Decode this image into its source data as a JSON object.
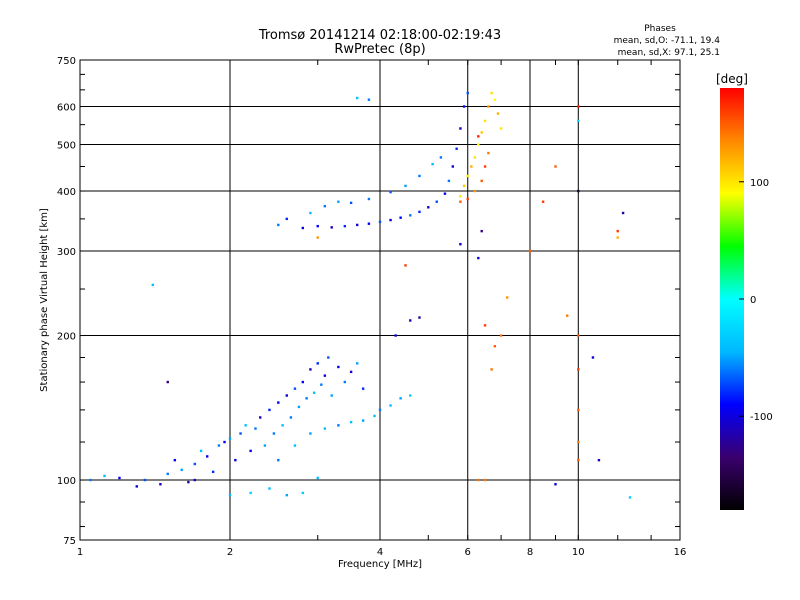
{
  "chart_data": {
    "type": "scatter",
    "title": "Tromsø 20141214 02:18:00-02:19:43",
    "subtitle": "RwPretec (8p)",
    "xlabel": "Frequency [MHz]",
    "ylabel": "Stationary phase Virtual Height [km]",
    "xscale": "log",
    "yscale": "log",
    "xlim": [
      1,
      16
    ],
    "ylim": [
      75,
      750
    ],
    "xticks": [
      1,
      2,
      4,
      6,
      8,
      10,
      16
    ],
    "yticks": [
      75,
      100,
      200,
      300,
      400,
      500,
      600,
      750
    ],
    "grid": true,
    "legend_placement": "top-right",
    "phase_stats": {
      "header": "Phases",
      "o_mode": "mean, sd,O: -71.1, 19.4",
      "x_mode": "mean, sd,X:  97.1, 25.1"
    },
    "colorbar": {
      "label": "[deg]",
      "range": [
        -180,
        180
      ],
      "ticks": [
        100,
        0,
        -100
      ],
      "colors": [
        "#000000",
        "#3a006e",
        "#0000ff",
        "#00b8ff",
        "#00ffff",
        "#00ff00",
        "#ffff00",
        "#ff8800",
        "#ff0000"
      ]
    },
    "series": [
      {
        "mode": "o",
        "points": [
          [
            1.05,
            100,
            -60
          ],
          [
            1.12,
            102,
            -40
          ],
          [
            1.2,
            101,
            -90
          ],
          [
            1.3,
            97,
            -100
          ],
          [
            1.35,
            100,
            -70
          ],
          [
            1.45,
            98,
            -110
          ],
          [
            1.5,
            103,
            -60
          ],
          [
            1.55,
            110,
            -90
          ],
          [
            1.6,
            105,
            -50
          ],
          [
            1.65,
            99,
            -120
          ],
          [
            1.7,
            108,
            -70
          ],
          [
            1.75,
            115,
            -40
          ],
          [
            1.8,
            112,
            -100
          ],
          [
            1.85,
            104,
            -80
          ],
          [
            1.9,
            118,
            -60
          ],
          [
            1.95,
            120,
            -90
          ],
          [
            2.0,
            122,
            -50
          ],
          [
            2.05,
            110,
            -100
          ],
          [
            2.1,
            125,
            -70
          ],
          [
            2.15,
            130,
            -40
          ],
          [
            2.2,
            115,
            -90
          ],
          [
            2.25,
            128,
            -60
          ],
          [
            2.3,
            135,
            -110
          ],
          [
            2.35,
            118,
            -50
          ],
          [
            2.4,
            140,
            -80
          ],
          [
            2.45,
            125,
            -60
          ],
          [
            2.5,
            145,
            -90
          ],
          [
            2.55,
            130,
            -40
          ],
          [
            2.6,
            150,
            -100
          ],
          [
            2.65,
            135,
            -60
          ],
          [
            2.7,
            155,
            -70
          ],
          [
            2.75,
            142,
            -50
          ],
          [
            2.8,
            160,
            -90
          ],
          [
            2.85,
            148,
            -60
          ],
          [
            2.9,
            170,
            -110
          ],
          [
            2.95,
            152,
            -40
          ],
          [
            3.0,
            175,
            -80
          ],
          [
            3.05,
            158,
            -60
          ],
          [
            3.1,
            165,
            -100
          ],
          [
            3.15,
            180,
            -70
          ],
          [
            3.2,
            150,
            -50
          ],
          [
            3.3,
            172,
            -90
          ],
          [
            3.4,
            160,
            -60
          ],
          [
            3.5,
            168,
            -110
          ],
          [
            3.6,
            175,
            -50
          ],
          [
            3.7,
            155,
            -80
          ],
          [
            2.0,
            93,
            -40
          ],
          [
            2.2,
            94,
            -30
          ],
          [
            2.4,
            96,
            -40
          ],
          [
            2.6,
            93,
            -50
          ],
          [
            2.8,
            94,
            -30
          ],
          [
            3.0,
            101,
            -40
          ],
          [
            2.5,
            110,
            -60
          ],
          [
            2.7,
            118,
            -40
          ],
          [
            2.9,
            125,
            -50
          ],
          [
            3.1,
            128,
            -40
          ],
          [
            3.3,
            130,
            -60
          ],
          [
            3.5,
            132,
            -40
          ],
          [
            3.7,
            133,
            -50
          ],
          [
            3.9,
            136,
            -40
          ],
          [
            4.0,
            140,
            -60
          ],
          [
            4.2,
            143,
            -40
          ],
          [
            4.4,
            148,
            -50
          ],
          [
            4.6,
            150,
            -30
          ],
          [
            2.5,
            340,
            -60
          ],
          [
            2.6,
            350,
            -80
          ],
          [
            2.8,
            335,
            -100
          ],
          [
            3.0,
            338,
            -90
          ],
          [
            3.2,
            336,
            -110
          ],
          [
            3.4,
            338,
            -80
          ],
          [
            3.6,
            340,
            -100
          ],
          [
            3.8,
            342,
            -90
          ],
          [
            4.0,
            345,
            -70
          ],
          [
            4.2,
            348,
            -100
          ],
          [
            4.4,
            352,
            -90
          ],
          [
            4.6,
            356,
            -60
          ],
          [
            4.8,
            362,
            -80
          ],
          [
            5.0,
            370,
            -100
          ],
          [
            5.2,
            380,
            -70
          ],
          [
            5.4,
            395,
            -90
          ],
          [
            5.5,
            420,
            -60
          ],
          [
            5.6,
            450,
            -100
          ],
          [
            5.7,
            490,
            -80
          ],
          [
            5.8,
            540,
            -110
          ],
          [
            5.9,
            600,
            -90
          ],
          [
            6.0,
            640,
            -70
          ],
          [
            2.9,
            360,
            -40
          ],
          [
            3.1,
            372,
            -60
          ],
          [
            3.3,
            380,
            -50
          ],
          [
            3.5,
            378,
            -70
          ],
          [
            3.8,
            385,
            -60
          ],
          [
            4.2,
            398,
            -70
          ],
          [
            4.5,
            410,
            -50
          ],
          [
            4.8,
            430,
            -60
          ],
          [
            5.1,
            455,
            -40
          ],
          [
            5.3,
            470,
            -60
          ],
          [
            3.6,
            625,
            -40
          ],
          [
            3.8,
            620,
            -60
          ],
          [
            4.3,
            200,
            -100
          ],
          [
            4.6,
            215,
            -110
          ],
          [
            4.8,
            218,
            -120
          ],
          [
            5.8,
            310,
            -110
          ],
          [
            6.3,
            290,
            -100
          ],
          [
            6.4,
            330,
            -130
          ],
          [
            1.7,
            100,
            -110
          ],
          [
            1.5,
            160,
            -130
          ],
          [
            1.4,
            255,
            -40
          ],
          [
            10.0,
            400,
            -160
          ],
          [
            10.0,
            560,
            -30
          ],
          [
            9.0,
            98,
            -100
          ],
          [
            12.3,
            360,
            -120
          ],
          [
            11.0,
            110,
            -110
          ],
          [
            10.7,
            180,
            -100
          ],
          [
            12.7,
            92,
            -30
          ]
        ]
      },
      {
        "mode": "x",
        "points": [
          [
            5.8,
            390,
            100
          ],
          [
            5.9,
            410,
            110
          ],
          [
            6.0,
            430,
            95
          ],
          [
            6.1,
            450,
            120
          ],
          [
            6.2,
            470,
            100
          ],
          [
            6.3,
            500,
            90
          ],
          [
            6.4,
            530,
            110
          ],
          [
            6.5,
            560,
            100
          ],
          [
            6.6,
            600,
            130
          ],
          [
            6.7,
            640,
            100
          ],
          [
            6.8,
            620,
            90
          ],
          [
            6.9,
            580,
            120
          ],
          [
            7.0,
            540,
            100
          ],
          [
            6.6,
            480,
            140
          ],
          [
            6.4,
            420,
            150
          ],
          [
            6.2,
            400,
            130
          ],
          [
            6.0,
            385,
            160
          ],
          [
            5.8,
            380,
            150
          ],
          [
            6.3,
            520,
            170
          ],
          [
            6.5,
            450,
            160
          ],
          [
            6.7,
            170,
            140
          ],
          [
            6.8,
            190,
            150
          ],
          [
            7.0,
            200,
            140
          ],
          [
            6.5,
            210,
            160
          ],
          [
            7.2,
            240,
            130
          ],
          [
            6.5,
            100,
            140
          ],
          [
            8.0,
            300,
            150
          ],
          [
            8.5,
            380,
            160
          ],
          [
            9.0,
            450,
            150
          ],
          [
            9.5,
            220,
            140
          ],
          [
            10.0,
            600,
            170
          ],
          [
            10.0,
            200,
            150
          ],
          [
            10.0,
            170,
            160
          ],
          [
            10.0,
            140,
            150
          ],
          [
            10.0,
            120,
            140
          ],
          [
            10.0,
            110,
            150
          ],
          [
            12.0,
            320,
            120
          ],
          [
            12.0,
            330,
            160
          ],
          [
            3.0,
            320,
            130
          ],
          [
            4.5,
            280,
            160
          ],
          [
            6.3,
            100,
            140
          ]
        ]
      }
    ]
  }
}
